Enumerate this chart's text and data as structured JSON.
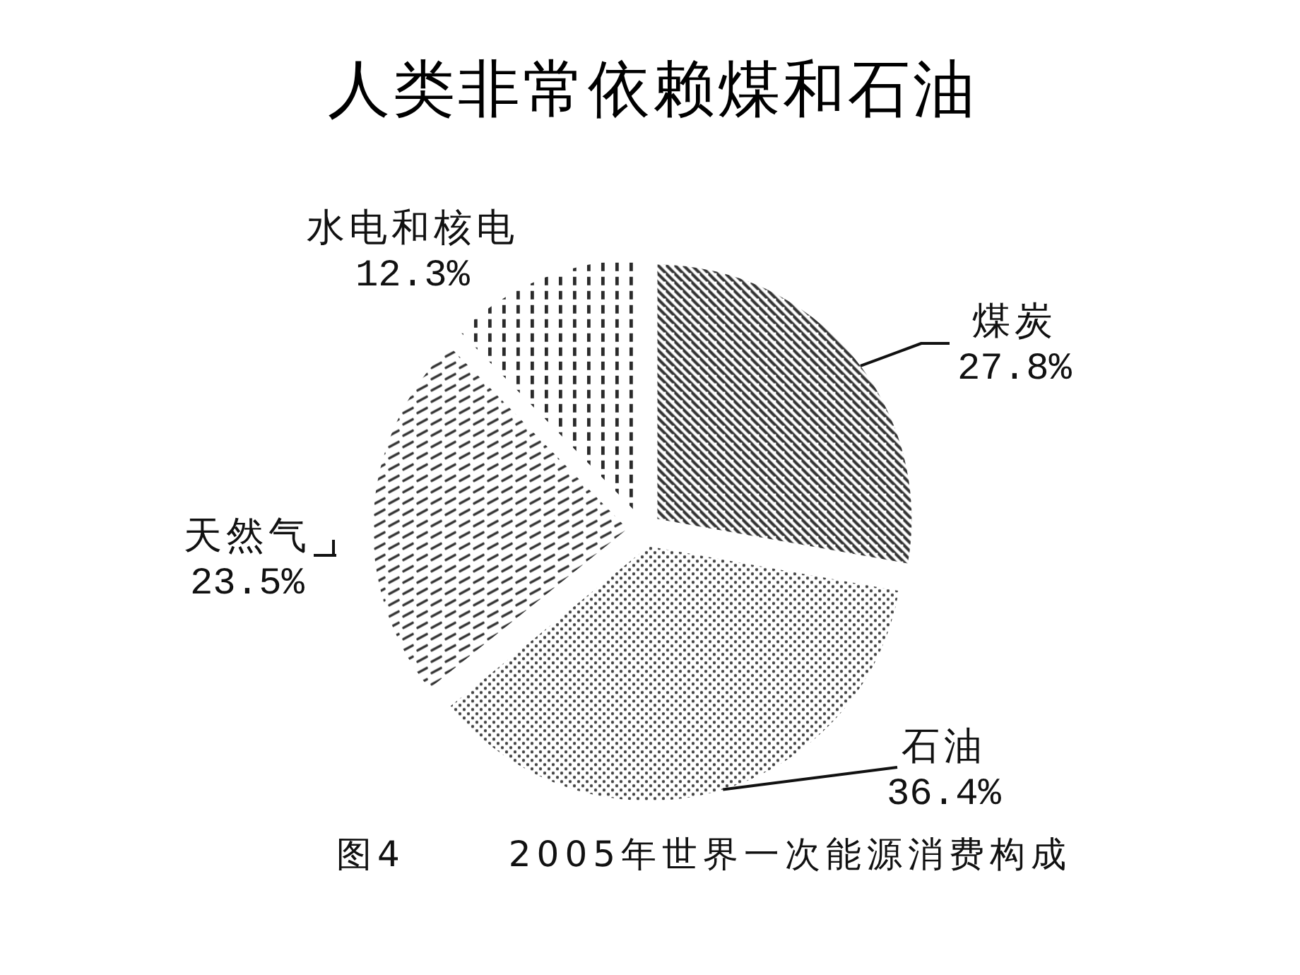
{
  "chart_data": {
    "type": "pie",
    "title": "人类非常依赖煤和石油",
    "categories": [
      "煤炭",
      "石油",
      "天然气",
      "水电和核电"
    ],
    "values": [
      27.8,
      36.4,
      23.5,
      12.3
    ],
    "colors": [
      "#333333",
      "#444444",
      "#333333",
      "#2a2a2a"
    ],
    "value_labels": [
      "27.8%",
      "36.4%",
      "23.5%",
      "12.3%"
    ],
    "annotations": [
      "图4",
      "2005年世界一次能源消费构成"
    ]
  }
}
